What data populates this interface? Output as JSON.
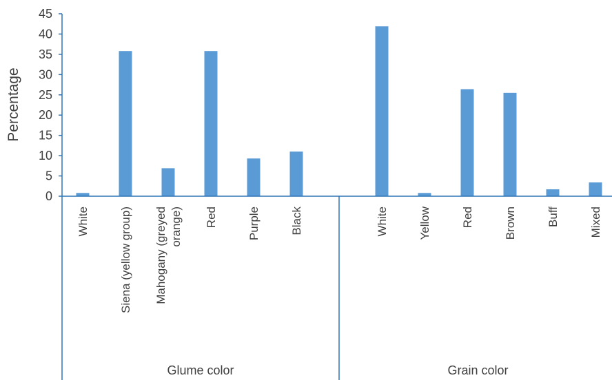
{
  "chart_data": {
    "type": "bar",
    "ylabel": "Percentage",
    "xlabel": "",
    "ylim": [
      0,
      45
    ],
    "yticks": [
      0,
      5,
      10,
      15,
      20,
      25,
      30,
      35,
      40,
      45
    ],
    "grid": false,
    "legend": "none",
    "bar_color": "#5b9bd5",
    "axis_color": "#2e75b6",
    "groups": [
      {
        "name": "Glume color",
        "categories": [
          [
            "White"
          ],
          [
            "Siena (yellow group)"
          ],
          [
            "Mahogany (greyed",
            "orange)"
          ],
          [
            "Red"
          ],
          [
            "Purple"
          ],
          [
            "Black"
          ]
        ],
        "values": [
          0.8,
          35.8,
          6.9,
          35.8,
          9.3,
          11.0
        ]
      },
      {
        "name": "Grain color",
        "categories": [
          [
            "White"
          ],
          [
            "Yellow"
          ],
          [
            "Red"
          ],
          [
            "Brown"
          ],
          [
            "Buff"
          ],
          [
            "Mixed"
          ]
        ],
        "values": [
          41.9,
          0.8,
          26.4,
          25.5,
          1.7,
          3.4
        ]
      }
    ]
  }
}
